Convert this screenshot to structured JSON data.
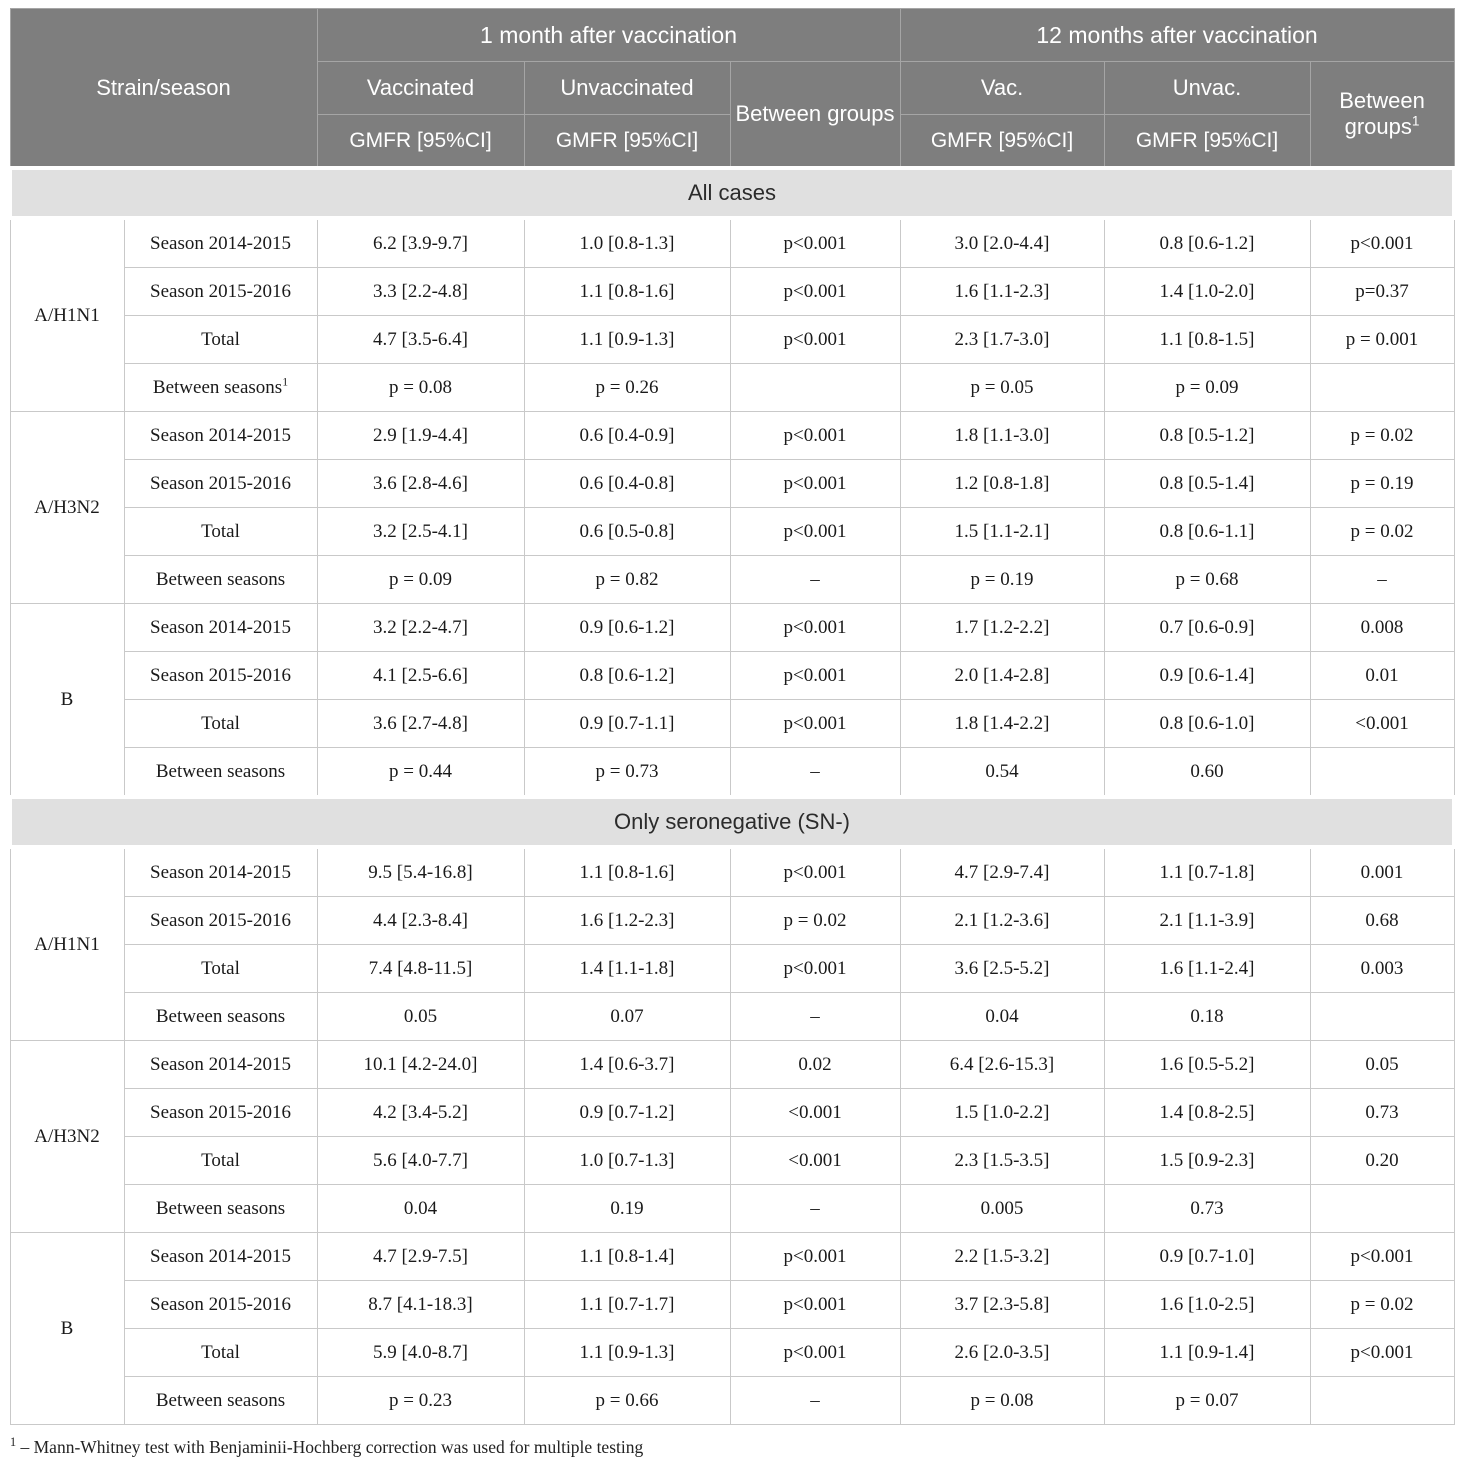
{
  "table": {
    "header": {
      "strain_season": "Strain/season",
      "group1": "1 month after vaccination",
      "group2": "12 months after vaccination",
      "col_vaccinated": "Vaccinated",
      "col_unvaccinated": "Unvaccinated",
      "col_between1": "Between groups",
      "col_vac": "Vac.",
      "col_unvac": "Unvac.",
      "col_between2": "Between groups",
      "col_between2_sup": "1",
      "gmfr": "GMFR [95%CI]"
    },
    "sections": [
      {
        "title": "All cases",
        "groups": [
          {
            "strain": "A/H1N1",
            "rows": [
              {
                "label": "Season 2014-2015",
                "label_sup": "",
                "cells": [
                  "6.2 [3.9-9.7]",
                  "1.0 [0.8-1.3]",
                  "p<0.001",
                  "3.0 [2.0-4.4]",
                  "0.8 [0.6-1.2]",
                  "p<0.001"
                ]
              },
              {
                "label": "Season 2015-2016",
                "label_sup": "",
                "cells": [
                  "3.3 [2.2-4.8]",
                  "1.1 [0.8-1.6]",
                  "p<0.001",
                  "1.6 [1.1-2.3]",
                  "1.4 [1.0-2.0]",
                  "p=0.37"
                ]
              },
              {
                "label": "Total",
                "label_sup": "",
                "cells": [
                  "4.7 [3.5-6.4]",
                  "1.1 [0.9-1.3]",
                  "p<0.001",
                  "2.3 [1.7-3.0]",
                  "1.1 [0.8-1.5]",
                  "p = 0.001"
                ]
              },
              {
                "label": "Between seasons",
                "label_sup": "1",
                "cells": [
                  "p = 0.08",
                  "p = 0.26",
                  "",
                  "p = 0.05",
                  "p = 0.09",
                  ""
                ]
              }
            ]
          },
          {
            "strain": "A/H3N2",
            "rows": [
              {
                "label": "Season 2014-2015",
                "label_sup": "",
                "cells": [
                  "2.9 [1.9-4.4]",
                  "0.6 [0.4-0.9]",
                  "p<0.001",
                  "1.8 [1.1-3.0]",
                  "0.8 [0.5-1.2]",
                  "p = 0.02"
                ]
              },
              {
                "label": "Season 2015-2016",
                "label_sup": "",
                "cells": [
                  "3.6 [2.8-4.6]",
                  "0.6 [0.4-0.8]",
                  "p<0.001",
                  "1.2 [0.8-1.8]",
                  "0.8 [0.5-1.4]",
                  "p = 0.19"
                ]
              },
              {
                "label": "Total",
                "label_sup": "",
                "cells": [
                  "3.2 [2.5-4.1]",
                  "0.6 [0.5-0.8]",
                  "p<0.001",
                  "1.5 [1.1-2.1]",
                  "0.8 [0.6-1.1]",
                  "p = 0.02"
                ]
              },
              {
                "label": "Between seasons",
                "label_sup": "",
                "cells": [
                  "p = 0.09",
                  "p = 0.82",
                  "–",
                  "p = 0.19",
                  "p = 0.68",
                  "–"
                ]
              }
            ]
          },
          {
            "strain": "B",
            "rows": [
              {
                "label": "Season 2014-2015",
                "label_sup": "",
                "cells": [
                  "3.2 [2.2-4.7]",
                  "0.9 [0.6-1.2]",
                  "p<0.001",
                  "1.7 [1.2-2.2]",
                  "0.7 [0.6-0.9]",
                  "0.008"
                ]
              },
              {
                "label": "Season 2015-2016",
                "label_sup": "",
                "cells": [
                  "4.1 [2.5-6.6]",
                  "0.8 [0.6-1.2]",
                  "p<0.001",
                  "2.0 [1.4-2.8]",
                  "0.9 [0.6-1.4]",
                  "0.01"
                ]
              },
              {
                "label": "Total",
                "label_sup": "",
                "cells": [
                  "3.6 [2.7-4.8]",
                  "0.9 [0.7-1.1]",
                  "p<0.001",
                  "1.8 [1.4-2.2]",
                  "0.8 [0.6-1.0]",
                  "<0.001"
                ]
              },
              {
                "label": "Between seasons",
                "label_sup": "",
                "cells": [
                  "p = 0.44",
                  "p = 0.73",
                  "–",
                  "0.54",
                  "0.60",
                  ""
                ]
              }
            ]
          }
        ]
      },
      {
        "title": "Only seronegative (SN-)",
        "groups": [
          {
            "strain": "A/H1N1",
            "rows": [
              {
                "label": "Season 2014-2015",
                "label_sup": "",
                "cells": [
                  "9.5 [5.4-16.8]",
                  "1.1 [0.8-1.6]",
                  "p<0.001",
                  "4.7 [2.9-7.4]",
                  "1.1 [0.7-1.8]",
                  "0.001"
                ]
              },
              {
                "label": "Season 2015-2016",
                "label_sup": "",
                "cells": [
                  "4.4 [2.3-8.4]",
                  "1.6 [1.2-2.3]",
                  "p = 0.02",
                  "2.1 [1.2-3.6]",
                  "2.1 [1.1-3.9]",
                  "0.68"
                ]
              },
              {
                "label": "Total",
                "label_sup": "",
                "cells": [
                  "7.4 [4.8-11.5]",
                  "1.4 [1.1-1.8]",
                  "p<0.001",
                  "3.6 [2.5-5.2]",
                  "1.6 [1.1-2.4]",
                  "0.003"
                ]
              },
              {
                "label": "Between seasons",
                "label_sup": "",
                "cells": [
                  "0.05",
                  "0.07",
                  "–",
                  "0.04",
                  "0.18",
                  ""
                ]
              }
            ]
          },
          {
            "strain": "A/H3N2",
            "rows": [
              {
                "label": "Season 2014-2015",
                "label_sup": "",
                "cells": [
                  "10.1 [4.2-24.0]",
                  "1.4 [0.6-3.7]",
                  "0.02",
                  "6.4 [2.6-15.3]",
                  "1.6 [0.5-5.2]",
                  "0.05"
                ]
              },
              {
                "label": "Season 2015-2016",
                "label_sup": "",
                "cells": [
                  "4.2 [3.4-5.2]",
                  "0.9 [0.7-1.2]",
                  "<0.001",
                  "1.5 [1.0-2.2]",
                  "1.4 [0.8-2.5]",
                  "0.73"
                ]
              },
              {
                "label": "Total",
                "label_sup": "",
                "cells": [
                  "5.6 [4.0-7.7]",
                  "1.0 [0.7-1.3]",
                  "<0.001",
                  "2.3 [1.5-3.5]",
                  "1.5 [0.9-2.3]",
                  "0.20"
                ]
              },
              {
                "label": "Between seasons",
                "label_sup": "",
                "cells": [
                  "0.04",
                  "0.19",
                  "–",
                  "0.005",
                  "0.73",
                  ""
                ]
              }
            ]
          },
          {
            "strain": "B",
            "rows": [
              {
                "label": "Season 2014-2015",
                "label_sup": "",
                "cells": [
                  "4.7 [2.9-7.5]",
                  "1.1 [0.8-1.4]",
                  "p<0.001",
                  "2.2 [1.5-3.2]",
                  "0.9 [0.7-1.0]",
                  "p<0.001"
                ]
              },
              {
                "label": "Season 2015-2016",
                "label_sup": "",
                "cells": [
                  "8.7 [4.1-18.3]",
                  "1.1 [0.7-1.7]",
                  "p<0.001",
                  "3.7 [2.3-5.8]",
                  "1.6 [1.0-2.5]",
                  "p = 0.02"
                ]
              },
              {
                "label": "Total",
                "label_sup": "",
                "cells": [
                  "5.9 [4.0-8.7]",
                  "1.1 [0.9-1.3]",
                  "p<0.001",
                  "2.6 [2.0-3.5]",
                  "1.1 [0.9-1.4]",
                  "p<0.001"
                ]
              },
              {
                "label": "Between seasons",
                "label_sup": "",
                "cells": [
                  "p = 0.23",
                  "p = 0.66",
                  "–",
                  "p = 0.08",
                  "p = 0.07",
                  ""
                ]
              }
            ]
          }
        ]
      }
    ]
  },
  "footnote": {
    "sup": "1",
    "text": "– Mann-Whitney test with Benjaminii-Hochberg correction was used for multiple testing"
  }
}
